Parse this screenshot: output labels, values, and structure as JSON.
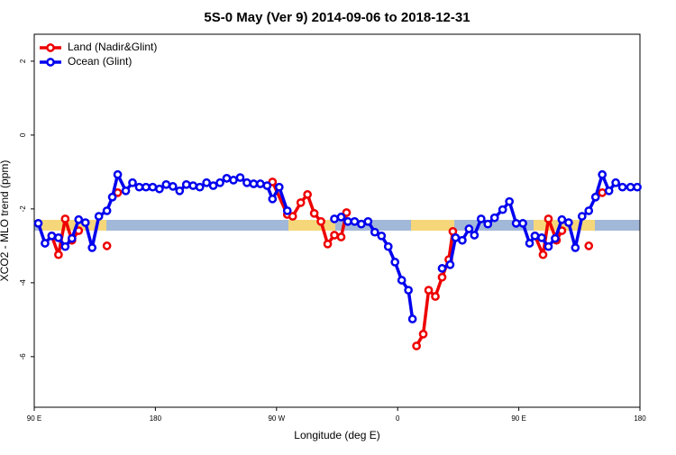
{
  "chart_data": {
    "type": "line",
    "title": "5S-0 May (Ver 9)   2014-09-06 to 2018-12-31",
    "xlabel": "Longitude (deg E)",
    "ylabel": "XCO2 - MLO trend (ppm)",
    "xlim": [
      90,
      540
    ],
    "ylim": [
      -7.37,
      2.73
    ],
    "xticks": [
      {
        "value": 90,
        "label": "90 E"
      },
      {
        "value": 180,
        "label": "180"
      },
      {
        "value": 270,
        "label": "90 W"
      },
      {
        "value": 360,
        "label": "0"
      },
      {
        "value": 450,
        "label": "90 E"
      },
      {
        "value": 540,
        "label": "180"
      }
    ],
    "yticks": [
      -6,
      -4,
      -2,
      0,
      2
    ],
    "legend": "top-left",
    "series": [
      {
        "name": "Land (Nadir&Glint)",
        "color": "#ee0000",
        "x": [
          103,
          108,
          113,
          118,
          123,
          130,
          144,
          148,
          152,
          200,
          267,
          278,
          282,
          288,
          293,
          298,
          303,
          308,
          313,
          318,
          322,
          350,
          374,
          379,
          383,
          388,
          393,
          398,
          401,
          430,
          462,
          468,
          472,
          478,
          482,
          490,
          502,
          507,
          512
        ],
        "values": [
          -2.73,
          -3.24,
          -2.27,
          -2.85,
          -2.59,
          null,
          -3.0,
          null,
          -1.56,
          null,
          -1.27,
          -2.15,
          -2.2,
          -1.83,
          -1.61,
          -2.12,
          -2.34,
          -2.95,
          -2.71,
          -2.76,
          -2.1,
          null,
          -5.71,
          -5.39,
          -4.2,
          -4.37,
          -3.85,
          -3.37,
          -2.61,
          null,
          -2.73,
          -3.24,
          -2.27,
          -2.85,
          -2.59,
          null,
          -3.0,
          null,
          -1.56
        ]
      },
      {
        "name": "Ocean (Glint)",
        "color": "#0000ee",
        "x": [
          93,
          98,
          103,
          108,
          113,
          118,
          123,
          128,
          133,
          138,
          144,
          148,
          152,
          158,
          163,
          168,
          173,
          178,
          183,
          188,
          193,
          198,
          203,
          208,
          213,
          218,
          223,
          228,
          233,
          238,
          243,
          248,
          253,
          258,
          263,
          267,
          272,
          278,
          300,
          313,
          318,
          323,
          328,
          333,
          338,
          343,
          348,
          353,
          358,
          363,
          368,
          371,
          380,
          393,
          399,
          403,
          408,
          413,
          417,
          422,
          427,
          432,
          438,
          443,
          448,
          453,
          458,
          462,
          467,
          472,
          477,
          482,
          487,
          492,
          497,
          502,
          507,
          512,
          517,
          522,
          527,
          533,
          538
        ],
        "values": [
          -2.39,
          -2.93,
          -2.73,
          -2.78,
          -3.02,
          -2.8,
          -2.29,
          -2.37,
          -3.05,
          -2.2,
          -2.05,
          -1.68,
          -1.07,
          -1.51,
          -1.29,
          -1.41,
          -1.41,
          -1.41,
          -1.46,
          -1.34,
          -1.39,
          -1.51,
          -1.34,
          -1.37,
          -1.41,
          -1.29,
          -1.37,
          -1.29,
          -1.17,
          -1.22,
          -1.15,
          -1.29,
          -1.32,
          -1.32,
          -1.37,
          -1.73,
          -1.41,
          -2.05,
          null,
          -2.27,
          -2.22,
          -2.34,
          -2.34,
          -2.41,
          -2.34,
          -2.63,
          -2.73,
          -3.02,
          -3.44,
          -3.93,
          -4.2,
          -4.98,
          null,
          -3.61,
          -3.51,
          -2.78,
          -2.85,
          -2.54,
          -2.71,
          -2.27,
          -2.41,
          -2.24,
          -2.02,
          -1.8,
          -2.39,
          -2.39,
          -2.93,
          -2.73,
          -2.78,
          -3.02,
          -2.8,
          -2.29,
          -2.37,
          -3.05,
          -2.2,
          -2.05,
          -1.68,
          -1.07,
          -1.51,
          -1.29,
          -1.41,
          -1.41,
          -1.41
        ]
      }
    ]
  }
}
